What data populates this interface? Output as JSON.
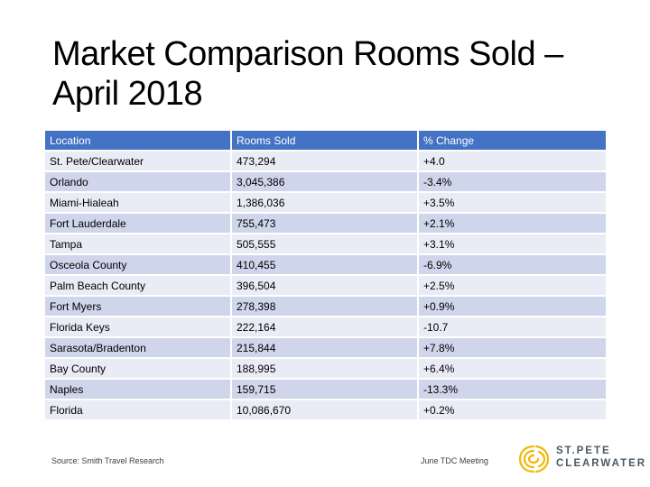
{
  "title": {
    "line1": "Market Comparison Rooms Sold –",
    "line2": "April 2018"
  },
  "table": {
    "headers": [
      "Location",
      "Rooms Sold",
      "% Change"
    ],
    "rows": [
      [
        "St. Pete/Clearwater",
        "473,294",
        "+4.0"
      ],
      [
        "Orlando",
        "3,045,386",
        "-3.4%"
      ],
      [
        "Miami-Hialeah",
        "1,386,036",
        "+3.5%"
      ],
      [
        "Fort Lauderdale",
        "755,473",
        "+2.1%"
      ],
      [
        "Tampa",
        "505,555",
        "+3.1%"
      ],
      [
        "Osceola County",
        "410,455",
        "-6.9%"
      ],
      [
        "Palm Beach County",
        "396,504",
        "+2.5%"
      ],
      [
        "Fort Myers",
        "278,398",
        "+0.9%"
      ],
      [
        "Florida Keys",
        "222,164",
        "-10.7"
      ],
      [
        "Sarasota/Bradenton",
        "215,844",
        "+7.8%"
      ],
      [
        "Bay County",
        "188,995",
        "+6.4%"
      ],
      [
        "Naples",
        "159,715",
        "-13.3%"
      ],
      [
        "Florida",
        "10,086,670",
        "+0.2%"
      ]
    ]
  },
  "footer": {
    "source": "Source: Smith Travel Research",
    "meeting": "June TDC Meeting",
    "logo_line1": "ST.PETE",
    "logo_line2": "CLEARWATER"
  },
  "colors": {
    "header_bg": "#4472c4",
    "row_light": "#e9ebf5",
    "row_dark": "#cfd5ea",
    "logo_gold": "#f2b705"
  }
}
